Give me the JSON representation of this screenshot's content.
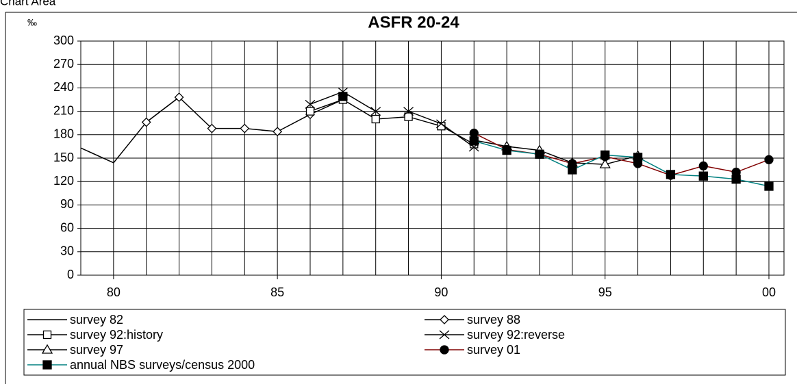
{
  "chart_data": {
    "type": "line",
    "title": "ASFR 20-24",
    "y_label": "‰",
    "header": "Chart Area",
    "x": [
      79,
      80,
      81,
      82,
      83,
      84,
      85,
      86,
      87,
      88,
      89,
      90,
      91,
      92,
      93,
      94,
      95,
      96,
      97,
      98,
      99,
      100
    ],
    "xlim": [
      79,
      100.46
    ],
    "xticks": [
      80,
      85,
      90,
      95,
      {
        "value": 100,
        "label": "00"
      }
    ],
    "ylim": [
      0,
      300
    ],
    "yticks": [
      0,
      30,
      60,
      90,
      120,
      150,
      180,
      210,
      240,
      270,
      300
    ],
    "grid": true,
    "series": [
      {
        "name": "survey 82",
        "color": "#000000",
        "marker": "none",
        "values": [
          163,
          144,
          196,
          228,
          null,
          null,
          null,
          null,
          null,
          null,
          null,
          null,
          null,
          null,
          null,
          null,
          null,
          null,
          null,
          null,
          null,
          null
        ]
      },
      {
        "name": "survey 88",
        "color": "#000000",
        "marker": "diamond",
        "values": [
          null,
          null,
          196,
          228,
          188,
          188,
          184,
          206,
          225,
          null,
          null,
          null,
          null,
          null,
          null,
          null,
          null,
          null,
          null,
          null,
          null,
          null
        ]
      },
      {
        "name": "survey 92:history",
        "color": "#000000",
        "marker": "square-open",
        "values": [
          null,
          null,
          null,
          null,
          null,
          null,
          null,
          210,
          225,
          200,
          203,
          191,
          168,
          null,
          null,
          null,
          null,
          null,
          null,
          null,
          null,
          null
        ]
      },
      {
        "name": "survey 92:reverse",
        "color": "#000000",
        "marker": "x",
        "values": [
          null,
          null,
          null,
          null,
          null,
          null,
          null,
          219,
          235,
          210,
          210,
          194,
          164,
          null,
          null,
          null,
          null,
          null,
          null,
          null,
          null,
          null
        ]
      },
      {
        "name": "survey 97",
        "color": "#000000",
        "marker": "triangle",
        "values": [
          null,
          null,
          null,
          null,
          null,
          null,
          null,
          null,
          null,
          null,
          null,
          null,
          173,
          165,
          160,
          144,
          142,
          153,
          null,
          null,
          null,
          null
        ]
      },
      {
        "name": "survey 01",
        "color": "#800000",
        "marker": "circle",
        "values": [
          null,
          null,
          null,
          null,
          null,
          null,
          null,
          null,
          null,
          null,
          null,
          null,
          182,
          161,
          155,
          143,
          152,
          143,
          128,
          140,
          132,
          148
        ]
      },
      {
        "name": "annual NBS surveys/census 2000",
        "color": "#008080",
        "marker": "square",
        "values": [
          null,
          null,
          null,
          null,
          null,
          null,
          null,
          null,
          229,
          null,
          null,
          null,
          172,
          160,
          155,
          135,
          154,
          151,
          129,
          127,
          123,
          114
        ]
      }
    ]
  }
}
